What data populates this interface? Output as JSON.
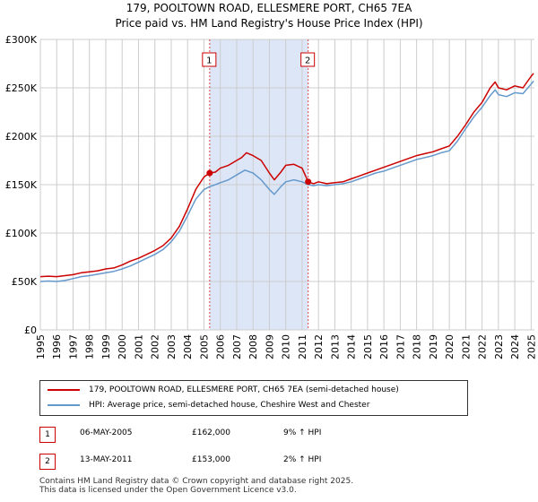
{
  "title_line1": "179, POOLTOWN ROAD, ELLESMERE PORT, CH65 7EA",
  "title_line2": "Price paid vs. HM Land Registry's House Price Index (HPI)",
  "colors": {
    "property": "#cc0000",
    "hpi": "#6699cc",
    "highlight": "#dde6f7",
    "grid": "#cccccc",
    "vline": "#dd4444"
  },
  "chart_data": {
    "type": "line",
    "title": "179, POOLTOWN ROAD, ELLESMERE PORT, CH65 7EA — Price paid vs. HM Land Registry's House Price Index (HPI)",
    "xlabel": "",
    "ylabel": "",
    "xlim": [
      1995,
      2025.2
    ],
    "ylim": [
      0,
      300000
    ],
    "grid": true,
    "x_ticks": [
      1995,
      1996,
      1997,
      1998,
      1999,
      2000,
      2001,
      2002,
      2003,
      2004,
      2005,
      2006,
      2007,
      2008,
      2009,
      2010,
      2011,
      2012,
      2013,
      2014,
      2015,
      2016,
      2017,
      2018,
      2019,
      2020,
      2021,
      2022,
      2023,
      2024,
      2025
    ],
    "y_ticks": [
      {
        "value": 0,
        "label": "£0"
      },
      {
        "value": 50000,
        "label": "£50K"
      },
      {
        "value": 100000,
        "label": "£100K"
      },
      {
        "value": 150000,
        "label": "£150K"
      },
      {
        "value": 200000,
        "label": "£200K"
      },
      {
        "value": 250000,
        "label": "£250K"
      },
      {
        "value": 300000,
        "label": "£300K"
      }
    ],
    "highlight_range": [
      2005.35,
      2011.37
    ],
    "series": [
      {
        "name": "179, POOLTOWN ROAD, ELLESMERE PORT, CH65 7EA (semi-detached house)",
        "color": "#cc0000",
        "points": [
          [
            1995,
            55000
          ],
          [
            1995.5,
            55500
          ],
          [
            1996,
            55000
          ],
          [
            1996.5,
            56000
          ],
          [
            1997,
            57000
          ],
          [
            1997.5,
            59000
          ],
          [
            1998,
            60000
          ],
          [
            1998.5,
            61000
          ],
          [
            1999,
            63000
          ],
          [
            1999.5,
            64000
          ],
          [
            2000,
            67000
          ],
          [
            2000.5,
            71000
          ],
          [
            2001,
            74000
          ],
          [
            2001.5,
            78000
          ],
          [
            2002,
            82000
          ],
          [
            2002.5,
            87000
          ],
          [
            2003,
            95000
          ],
          [
            2003.5,
            107000
          ],
          [
            2004,
            125000
          ],
          [
            2004.5,
            145000
          ],
          [
            2005,
            158000
          ],
          [
            2005.35,
            162000
          ],
          [
            2005.7,
            163000
          ],
          [
            2006,
            167000
          ],
          [
            2006.5,
            170000
          ],
          [
            2007,
            175000
          ],
          [
            2007.3,
            178000
          ],
          [
            2007.6,
            183000
          ],
          [
            2008,
            180000
          ],
          [
            2008.5,
            175000
          ],
          [
            2009,
            162000
          ],
          [
            2009.3,
            155000
          ],
          [
            2009.7,
            163000
          ],
          [
            2010,
            170000
          ],
          [
            2010.5,
            171000
          ],
          [
            2011,
            167000
          ],
          [
            2011.37,
            153000
          ],
          [
            2011.7,
            151000
          ],
          [
            2012,
            153000
          ],
          [
            2012.5,
            151000
          ],
          [
            2013,
            152000
          ],
          [
            2013.5,
            153000
          ],
          [
            2014,
            156000
          ],
          [
            2014.5,
            159000
          ],
          [
            2015,
            162000
          ],
          [
            2015.5,
            165000
          ],
          [
            2016,
            168000
          ],
          [
            2016.5,
            171000
          ],
          [
            2017,
            174000
          ],
          [
            2017.5,
            177000
          ],
          [
            2018,
            180000
          ],
          [
            2018.5,
            182000
          ],
          [
            2019,
            184000
          ],
          [
            2019.5,
            187000
          ],
          [
            2020,
            190000
          ],
          [
            2020.5,
            200000
          ],
          [
            2021,
            212000
          ],
          [
            2021.5,
            225000
          ],
          [
            2022,
            235000
          ],
          [
            2022.5,
            250000
          ],
          [
            2022.8,
            256000
          ],
          [
            2023,
            250000
          ],
          [
            2023.5,
            248000
          ],
          [
            2024,
            252000
          ],
          [
            2024.5,
            250000
          ],
          [
            2025,
            262000
          ],
          [
            2025.15,
            265000
          ]
        ]
      },
      {
        "name": "HPI: Average price, semi-detached house, Cheshire West and Chester",
        "color": "#6699cc",
        "points": [
          [
            1995,
            50000
          ],
          [
            1995.5,
            50500
          ],
          [
            1996,
            50000
          ],
          [
            1996.5,
            51000
          ],
          [
            1997,
            53000
          ],
          [
            1997.5,
            55000
          ],
          [
            1998,
            56000
          ],
          [
            1998.5,
            57500
          ],
          [
            1999,
            59000
          ],
          [
            1999.5,
            60500
          ],
          [
            2000,
            63000
          ],
          [
            2000.5,
            66000
          ],
          [
            2001,
            70000
          ],
          [
            2001.5,
            74000
          ],
          [
            2002,
            78000
          ],
          [
            2002.5,
            83000
          ],
          [
            2003,
            91000
          ],
          [
            2003.5,
            102000
          ],
          [
            2004,
            118000
          ],
          [
            2004.5,
            135000
          ],
          [
            2005,
            145000
          ],
          [
            2005.35,
            148000
          ],
          [
            2005.7,
            150000
          ],
          [
            2006,
            152000
          ],
          [
            2006.5,
            155000
          ],
          [
            2007,
            160000
          ],
          [
            2007.5,
            165000
          ],
          [
            2008,
            162000
          ],
          [
            2008.5,
            155000
          ],
          [
            2009,
            145000
          ],
          [
            2009.3,
            140000
          ],
          [
            2009.7,
            148000
          ],
          [
            2010,
            153000
          ],
          [
            2010.5,
            155000
          ],
          [
            2011,
            153000
          ],
          [
            2011.37,
            150000
          ],
          [
            2011.7,
            149000
          ],
          [
            2012,
            150000
          ],
          [
            2012.5,
            149000
          ],
          [
            2013,
            150000
          ],
          [
            2013.5,
            151000
          ],
          [
            2014,
            153000
          ],
          [
            2014.5,
            156000
          ],
          [
            2015,
            159000
          ],
          [
            2015.5,
            162000
          ],
          [
            2016,
            164000
          ],
          [
            2016.5,
            167000
          ],
          [
            2017,
            170000
          ],
          [
            2017.5,
            173000
          ],
          [
            2018,
            176000
          ],
          [
            2018.5,
            178000
          ],
          [
            2019,
            180000
          ],
          [
            2019.5,
            183000
          ],
          [
            2020,
            185000
          ],
          [
            2020.5,
            195000
          ],
          [
            2021,
            208000
          ],
          [
            2021.5,
            220000
          ],
          [
            2022,
            230000
          ],
          [
            2022.5,
            242000
          ],
          [
            2022.8,
            248000
          ],
          [
            2023,
            243000
          ],
          [
            2023.5,
            241000
          ],
          [
            2024,
            245000
          ],
          [
            2024.5,
            244000
          ],
          [
            2025,
            254000
          ],
          [
            2025.15,
            257000
          ]
        ]
      }
    ],
    "sales": [
      {
        "label": "1",
        "x": 2005.35,
        "y": 162000
      },
      {
        "label": "2",
        "x": 2011.37,
        "y": 153000
      }
    ]
  },
  "legend": {
    "property_label": "179, POOLTOWN ROAD, ELLESMERE PORT, CH65 7EA (semi-detached house)",
    "hpi_label": "HPI: Average price, semi-detached house, Cheshire West and Chester"
  },
  "sales_table": [
    {
      "num": "1",
      "date": "06-MAY-2005",
      "price": "£162,000",
      "hpi": "9% ↑ HPI"
    },
    {
      "num": "2",
      "date": "13-MAY-2011",
      "price": "£153,000",
      "hpi": "2% ↑ HPI"
    }
  ],
  "footer": {
    "line1": "Contains HM Land Registry data © Crown copyright and database right 2025.",
    "line2": "This data is licensed under the Open Government Licence v3.0."
  }
}
